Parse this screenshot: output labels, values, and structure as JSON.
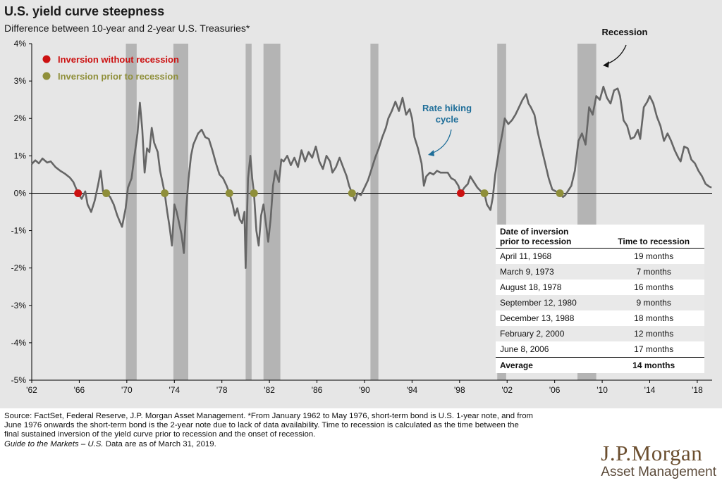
{
  "header": {
    "title": "U.S. yield curve steepness",
    "subtitle": "Difference between 10-year and 2-year U.S. Treasuries*"
  },
  "legend": {
    "red_label": "Inversion without recession",
    "olive_label": "Inversion prior to recession"
  },
  "annotations": {
    "recession": "Recession",
    "rate_hiking_line1": "Rate hiking",
    "rate_hiking_line2": "cycle"
  },
  "colors": {
    "gray_line": "#666666",
    "blue_line": "#1f6e99",
    "recession_band": "#b4b4b4",
    "red_dot": "#cc1111",
    "olive_dot": "#8f8f3a",
    "annotation_blue": "#1f6e99"
  },
  "chart_data": {
    "type": "line",
    "title": "U.S. yield curve steepness",
    "subtitle": "Difference between 10-year and 2-year U.S. Treasuries*",
    "xlabel": "",
    "ylabel": "",
    "xlim": [
      1962,
      2019.25
    ],
    "ylim": [
      -5,
      4
    ],
    "x_ticks": [
      1962,
      1966,
      1970,
      1974,
      1978,
      1982,
      1986,
      1990,
      1994,
      1998,
      2002,
      2006,
      2010,
      2014,
      2018
    ],
    "x_tick_labels": [
      "'62",
      "'66",
      "'70",
      "'74",
      "'78",
      "'82",
      "'86",
      "'90",
      "'94",
      "'98",
      "'02",
      "'06",
      "'10",
      "'14",
      "'18"
    ],
    "y_ticks": [
      4,
      3,
      2,
      1,
      0,
      -1,
      -2,
      -3,
      -4,
      -5
    ],
    "y_tick_labels": [
      "4%",
      "3%",
      "2%",
      "1%",
      "0%",
      "-1%",
      "-2%",
      "-3%",
      "-4%",
      "-5%"
    ],
    "grid": false,
    "recessions": [
      [
        1969.92,
        1970.83
      ],
      [
        1973.92,
        1975.17
      ],
      [
        1980.0,
        1980.5
      ],
      [
        1981.5,
        1982.92
      ],
      [
        1990.5,
        1991.17
      ],
      [
        2001.17,
        2001.92
      ],
      [
        2007.92,
        2009.5
      ]
    ],
    "inversions_without_recession": [
      1965.9,
      1998.1
    ],
    "inversions_prior_to_recession": [
      1968.27,
      1973.19,
      1978.63,
      1980.7,
      1988.95,
      2000.09,
      2006.44
    ],
    "series": [
      {
        "name": "",
        "color": "#666666",
        "points": [
          [
            1962.0,
            0.78
          ],
          [
            1962.3,
            0.88
          ],
          [
            1962.6,
            0.8
          ],
          [
            1962.9,
            0.93
          ],
          [
            1963.3,
            0.82
          ],
          [
            1963.6,
            0.85
          ],
          [
            1964.0,
            0.7
          ],
          [
            1964.4,
            0.6
          ],
          [
            1964.8,
            0.52
          ],
          [
            1965.2,
            0.42
          ],
          [
            1965.5,
            0.3
          ],
          [
            1965.9,
            0.0
          ],
          [
            1966.2,
            -0.15
          ],
          [
            1966.5,
            0.05
          ],
          [
            1966.7,
            -0.3
          ],
          [
            1967.0,
            -0.5
          ],
          [
            1967.3,
            -0.2
          ],
          [
            1967.6,
            0.25
          ],
          [
            1967.8,
            0.6
          ],
          [
            1968.0,
            0.05
          ],
          [
            1968.27,
            0.0
          ],
          [
            1968.6,
            -0.1
          ],
          [
            1968.9,
            -0.3
          ],
          [
            1969.2,
            -0.6
          ],
          [
            1969.4,
            -0.75
          ],
          [
            1969.6,
            -0.9
          ],
          [
            1969.9,
            -0.4
          ],
          [
            1970.1,
            0.15
          ],
          [
            1970.4,
            0.4
          ],
          [
            1970.6,
            0.9
          ],
          [
            1970.9,
            1.6
          ],
          [
            1971.1,
            2.42
          ],
          [
            1971.3,
            1.7
          ],
          [
            1971.5,
            0.55
          ],
          [
            1971.7,
            1.2
          ],
          [
            1971.9,
            1.1
          ],
          [
            1972.1,
            1.75
          ],
          [
            1972.3,
            1.35
          ],
          [
            1972.6,
            1.1
          ],
          [
            1972.8,
            0.6
          ],
          [
            1973.0,
            0.3
          ],
          [
            1973.19,
            0.0
          ],
          [
            1973.4,
            -0.5
          ],
          [
            1973.6,
            -0.9
          ],
          [
            1973.8,
            -1.4
          ],
          [
            1974.0,
            -0.3
          ],
          [
            1974.2,
            -0.5
          ],
          [
            1974.4,
            -0.8
          ],
          [
            1974.6,
            -1.1
          ],
          [
            1974.8,
            -1.6
          ],
          [
            1975.0,
            -0.4
          ],
          [
            1975.2,
            0.4
          ],
          [
            1975.4,
            1.0
          ],
          [
            1975.6,
            1.3
          ],
          [
            1975.8,
            1.45
          ],
          [
            1976.0,
            1.6
          ],
          [
            1976.3,
            1.7
          ],
          [
            1976.6,
            1.5
          ],
          [
            1976.9,
            1.45
          ],
          [
            1977.2,
            1.15
          ],
          [
            1977.5,
            0.8
          ],
          [
            1977.8,
            0.5
          ],
          [
            1978.1,
            0.4
          ],
          [
            1978.4,
            0.2
          ],
          [
            1978.63,
            0.0
          ],
          [
            1978.9,
            -0.3
          ],
          [
            1979.1,
            -0.6
          ],
          [
            1979.3,
            -0.4
          ],
          [
            1979.5,
            -0.7
          ],
          [
            1979.7,
            -0.8
          ],
          [
            1979.9,
            -0.5
          ],
          [
            1980.0,
            -2.0
          ],
          [
            1980.2,
            0.4
          ],
          [
            1980.4,
            1.0
          ],
          [
            1980.55,
            0.4
          ],
          [
            1980.7,
            0.0
          ],
          [
            1980.9,
            -1.0
          ],
          [
            1981.1,
            -1.4
          ],
          [
            1981.3,
            -0.6
          ],
          [
            1981.5,
            -0.3
          ],
          [
            1981.7,
            -0.8
          ],
          [
            1981.9,
            -1.3
          ],
          [
            1982.1,
            -0.7
          ],
          [
            1982.3,
            0.2
          ],
          [
            1982.5,
            0.6
          ],
          [
            1982.8,
            0.3
          ],
          [
            1983.0,
            0.9
          ],
          [
            1983.2,
            0.85
          ],
          [
            1983.5,
            1.0
          ],
          [
            1983.8,
            0.75
          ],
          [
            1984.1,
            0.95
          ],
          [
            1984.4,
            0.7
          ],
          [
            1984.7,
            1.15
          ],
          [
            1985.0,
            0.85
          ],
          [
            1985.3,
            1.1
          ],
          [
            1985.6,
            0.95
          ],
          [
            1985.9,
            1.25
          ],
          [
            1986.2,
            0.85
          ],
          [
            1986.5,
            0.65
          ],
          [
            1986.8,
            1.0
          ],
          [
            1987.1,
            0.85
          ],
          [
            1987.3,
            0.55
          ],
          [
            1987.6,
            0.7
          ],
          [
            1987.9,
            0.95
          ],
          [
            1988.2,
            0.7
          ],
          [
            1988.5,
            0.45
          ],
          [
            1988.7,
            0.2
          ],
          [
            1988.95,
            0.0
          ],
          [
            1989.2,
            -0.2
          ],
          [
            1989.4,
            0.0
          ],
          [
            1989.7,
            -0.05
          ],
          [
            1990.0,
            0.15
          ],
          [
            1990.3,
            0.35
          ],
          [
            1990.6,
            0.65
          ],
          [
            1990.9,
            0.95
          ],
          [
            1991.2,
            1.2
          ],
          [
            1991.5,
            1.5
          ],
          [
            1991.8,
            1.75
          ],
          [
            1992.0,
            2.0
          ],
          [
            1992.3,
            2.2
          ],
          [
            1992.6,
            2.45
          ],
          [
            1992.9,
            2.2
          ],
          [
            1993.2,
            2.55
          ],
          [
            1993.5,
            2.1
          ],
          [
            1993.8,
            2.25
          ],
          [
            1994.0,
            2.0
          ],
          [
            1994.2,
            1.5
          ],
          [
            1994.5,
            1.2
          ],
          [
            1994.8,
            0.8
          ],
          [
            1995.0,
            0.2
          ],
          [
            1995.2,
            0.45
          ],
          [
            1995.5,
            0.55
          ],
          [
            1995.8,
            0.5
          ],
          [
            1996.1,
            0.6
          ],
          [
            1996.4,
            0.55
          ],
          [
            1996.7,
            0.55
          ],
          [
            1997.0,
            0.55
          ],
          [
            1997.3,
            0.4
          ],
          [
            1997.6,
            0.35
          ],
          [
            1997.9,
            0.2
          ],
          [
            1998.1,
            0.0
          ],
          [
            1998.4,
            0.15
          ],
          [
            1998.7,
            0.25
          ],
          [
            1998.9,
            0.45
          ],
          [
            1999.2,
            0.3
          ],
          [
            1999.5,
            0.15
          ],
          [
            1999.8,
            0.05
          ],
          [
            2000.09,
            0.0
          ],
          [
            2000.3,
            -0.3
          ],
          [
            2000.6,
            -0.45
          ],
          [
            2000.8,
            -0.1
          ],
          [
            2001.0,
            0.5
          ],
          [
            2001.3,
            1.1
          ],
          [
            2001.6,
            1.6
          ],
          [
            2001.8,
            2.0
          ],
          [
            2002.1,
            1.85
          ],
          [
            2002.4,
            1.95
          ],
          [
            2002.7,
            2.1
          ],
          [
            2003.0,
            2.3
          ],
          [
            2003.3,
            2.5
          ],
          [
            2003.6,
            2.65
          ],
          [
            2003.8,
            2.4
          ],
          [
            2004.0,
            2.3
          ],
          [
            2004.3,
            2.1
          ],
          [
            2004.6,
            1.6
          ],
          [
            2004.9,
            1.2
          ],
          [
            2005.2,
            0.8
          ],
          [
            2005.5,
            0.4
          ],
          [
            2005.8,
            0.1
          ],
          [
            2006.1,
            0.05
          ],
          [
            2006.44,
            0.0
          ],
          [
            2006.7,
            -0.1
          ],
          [
            2006.9,
            -0.05
          ],
          [
            2007.1,
            0.05
          ],
          [
            2007.4,
            0.2
          ],
          [
            2007.7,
            0.6
          ],
          [
            2008.0,
            1.4
          ],
          [
            2008.3,
            1.6
          ],
          [
            2008.6,
            1.3
          ],
          [
            2008.9,
            2.3
          ],
          [
            2009.2,
            2.1
          ],
          [
            2009.5,
            2.6
          ],
          [
            2009.8,
            2.5
          ],
          [
            2010.1,
            2.85
          ],
          [
            2010.4,
            2.55
          ],
          [
            2010.7,
            2.4
          ],
          [
            2011.0,
            2.75
          ],
          [
            2011.3,
            2.8
          ],
          [
            2011.5,
            2.6
          ],
          [
            2011.8,
            1.95
          ],
          [
            2012.1,
            1.8
          ],
          [
            2012.4,
            1.45
          ],
          [
            2012.7,
            1.5
          ],
          [
            2013.0,
            1.7
          ],
          [
            2013.2,
            1.45
          ],
          [
            2013.5,
            2.3
          ],
          [
            2013.8,
            2.45
          ],
          [
            2014.0,
            2.6
          ],
          [
            2014.3,
            2.4
          ],
          [
            2014.6,
            2.05
          ],
          [
            2014.9,
            1.8
          ],
          [
            2015.2,
            1.4
          ],
          [
            2015.5,
            1.6
          ],
          [
            2015.8,
            1.4
          ],
          [
            2016.1,
            1.15
          ],
          [
            2016.4,
            0.95
          ],
          [
            2016.6,
            0.85
          ],
          [
            2016.9,
            1.25
          ],
          [
            2017.2,
            1.2
          ],
          [
            2017.5,
            0.9
          ],
          [
            2017.8,
            0.8
          ],
          [
            2018.1,
            0.6
          ],
          [
            2018.4,
            0.45
          ],
          [
            2018.7,
            0.25
          ],
          [
            2019.0,
            0.18
          ],
          [
            2019.2,
            0.15
          ]
        ]
      }
    ]
  },
  "table": {
    "col1_header_line1": "Date of inversion",
    "col1_header_line2": "prior to recession",
    "col2_header": "Time to recession",
    "rows": [
      {
        "date": "April 11, 1968",
        "time": "19 months"
      },
      {
        "date": "March 9, 1973",
        "time": "7 months"
      },
      {
        "date": "August 18, 1978",
        "time": "16 months"
      },
      {
        "date": "September 12, 1980",
        "time": "9 months"
      },
      {
        "date": "December 13, 1988",
        "time": "18 months"
      },
      {
        "date": "February 2, 2000",
        "time": "12 months"
      },
      {
        "date": "June 8, 2006",
        "time": "17 months"
      }
    ],
    "average_label": "Average",
    "average_value": "14 months"
  },
  "footnote": {
    "line1": "Source: FactSet, Federal Reserve, J.P. Morgan Asset Management. *From January 1962 to May 1976, short-term bond is U.S. 1-year note, and from",
    "line2": "June 1976 onwards the short-term bond is the 2-year note due to lack of data availability. Time to recession is calculated as the time between the",
    "line3": "final sustained inversion of the yield curve prior to recession and the onset of recession.",
    "line4_italic": "Guide to the Markets – U.S.",
    "line4_rest": " Data are as of March 31, 2019."
  },
  "logo": {
    "main": "J.P.Morgan",
    "sub": "Asset Management"
  }
}
